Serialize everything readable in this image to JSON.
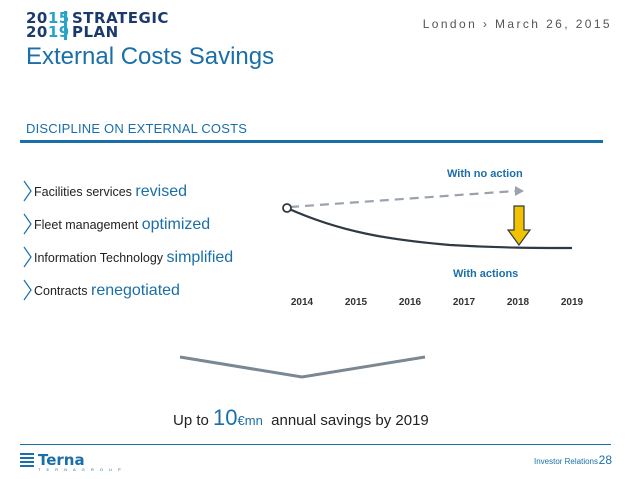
{
  "header": {
    "logo_year_top_a": "20",
    "logo_year_top_b": "15",
    "logo_year_bottom_a": "20",
    "logo_year_bottom_b": "19",
    "logo_word_1": "STRATEGIC",
    "logo_word_2": "PLAN",
    "location_date": "London › March 26, 2015"
  },
  "title": "External Costs Savings",
  "section": {
    "label": "DISCIPLINE ON EXTERNAL COSTS"
  },
  "bullets": [
    {
      "text": "Facilities services",
      "highlight": "revised"
    },
    {
      "text": "Fleet management",
      "highlight": "optimized"
    },
    {
      "text": "Information Technology",
      "highlight": "simplified"
    },
    {
      "text": "Contracts",
      "highlight": "renegotiated"
    }
  ],
  "chart_data": {
    "type": "line",
    "title": "",
    "x": [
      "2014",
      "2015",
      "2016",
      "2017",
      "2018",
      "2019"
    ],
    "series": [
      {
        "name": "With no action",
        "style": "dashed",
        "color": "#9aa3ad"
      },
      {
        "name": "With actions",
        "style": "solid",
        "color": "#2f3a44"
      }
    ],
    "annotations": [
      "With no action",
      "With actions"
    ],
    "arrow_color": "#f2c200"
  },
  "summary": {
    "prefix": "Up to",
    "amount": "10",
    "unit": "€mn",
    "suffix": "annual savings by 2019"
  },
  "footer": {
    "brand": "Terna",
    "brand_sub": "T E R N A   G R O U P",
    "ir_label": "Investor Relations",
    "page_number": "28"
  },
  "colors": {
    "primary": "#1a6fa8",
    "navy": "#1b3a6b",
    "accent": "#2aa3c9",
    "arrow": "#f2c200"
  }
}
